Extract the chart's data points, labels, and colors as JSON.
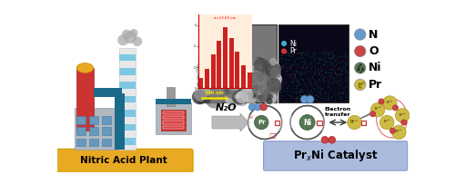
{
  "background_color": "#ffffff",
  "bottom_left_label": "Nitric Acid Plant",
  "n2o_label": "N₂O",
  "electron_transfer_label": "Electron\ntransfer",
  "legend_items": [
    "N",
    "O",
    "Ni",
    "Pr"
  ],
  "legend_colors": [
    "#6699cc",
    "#cc4444",
    "#557755",
    "#ccbb44"
  ],
  "ni_color": "#44aacc",
  "pr_color": "#cc3333",
  "bar_heights": [
    1.0,
    1.8,
    3.2,
    4.5,
    5.8,
    4.8,
    3.5,
    2.2,
    1.5
  ],
  "bar_color": "#cc2222",
  "factory_base_color": "#e8aa22",
  "chimney_stripe_color": "#7ec8e3",
  "right_panel_color": "#aabbdd",
  "arrow_color": "#bbbbbb",
  "chimney_bg": "#e8e8e8",
  "teal_color": "#1a6b8a",
  "red_factory": "#cc3333",
  "grey_factory": "#b0b8c0"
}
